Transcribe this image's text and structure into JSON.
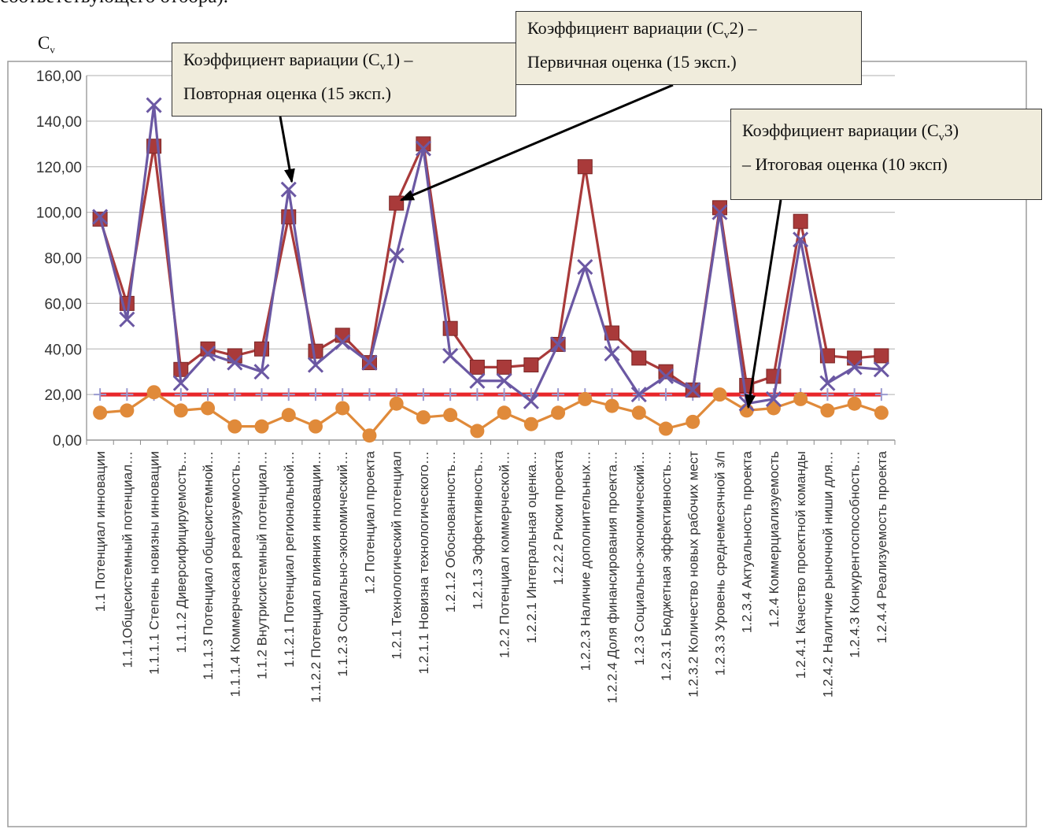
{
  "page": {
    "top_fragment": "соответствующего отбора)."
  },
  "colors": {
    "cv1": "#6b58a3",
    "cv2": "#a93a3a",
    "cv3": "#e08a3a",
    "threshold": "#e8262a",
    "threshold_marker": "#9a9ad0",
    "grid": "#bfbfbf",
    "callout_bg": "#f0ecdc"
  },
  "callouts": [
    {
      "line1_prefix": "Коэффициент вариации (C",
      "line1_sub": "v",
      "line1_suffix": "1) –",
      "line2": "Повторная оценка (15 эксп.)"
    },
    {
      "line1_prefix": "Коэффициент вариации (C",
      "line1_sub": "v",
      "line1_suffix": "2) –",
      "line2": "Первичная оценка (15 эксп.)"
    },
    {
      "line1_prefix": "Коэффициент вариации (C",
      "line1_sub": "v",
      "line1_suffix": "3)",
      "line2": "– Итоговая оценка (10 эксп)"
    }
  ],
  "chart_data": {
    "type": "line",
    "ylabel_main": "C",
    "ylabel_sub": "v",
    "ylim": [
      0,
      160
    ],
    "yticks": [
      "0,00",
      "20,00",
      "40,00",
      "60,00",
      "80,00",
      "100,00",
      "120,00",
      "140,00",
      "160,00"
    ],
    "grid": true,
    "categories": [
      "1.1  Потенциал инновации",
      "1.1.1Общесистемный потенциал…",
      "1.1.1.1 Степень новизны инновации",
      "1.1.1.2 Диверсифицируемость…",
      "1.1.1.3 Потенциал общесистемной…",
      "1.1.1.4 Коммерческая реализуемость…",
      "1.1.2 Внутрисистемный потенциал…",
      "1.1.2.1 Потенциал региональной…",
      "1.1.2.2 Потенциал влияния инновации…",
      "1.1.2.3 Социально-экономический…",
      "1.2 Потенциал проекта",
      "1.2.1 Технологический потенциал",
      "1.2.1.1 Новизна технологического…",
      "1.2.1.2 Обоснованность…",
      "1.2.1.3 Эффективность…",
      "1.2.2 Потенциал коммерческой…",
      "1.2.2.1 Интегральная оценка…",
      "1.2.2.2 Риски проекта",
      "1.2.2.3 Наличие дополнительных…",
      "1.2.2.4 Доля финансирования проекта…",
      "1.2.3 Социально-экономический…",
      "1.2.3.1 Бюджетная эффективность…",
      "1.2.3.2 Количество новых рабочих мест",
      "1.2.3.3 Уровень среднемесячной з/п",
      "1.2.3.4 Актуальность проекта",
      "1.2.4 Коммерциализуемость",
      "1.2.4.1 Качество проектной команды",
      "1.2.4.2 Налитчие рыночной ниши для…",
      "1.2.4.3 Конкурентоспособность…",
      "1.2.4.4 Реализуемость проекта"
    ],
    "series": [
      {
        "key": "cv1",
        "marker": "x",
        "values": [
          98,
          53,
          147,
          25,
          38,
          34,
          30,
          110,
          33,
          43,
          34,
          81,
          128,
          37,
          26,
          26,
          17,
          42,
          76,
          38,
          20,
          28,
          22,
          100,
          16,
          18,
          88,
          25,
          32,
          31
        ]
      },
      {
        "key": "cv2",
        "marker": "square",
        "values": [
          97,
          60,
          129,
          31,
          40,
          37,
          40,
          98,
          39,
          46,
          34,
          104,
          130,
          49,
          32,
          32,
          33,
          42,
          120,
          47,
          36,
          30,
          22,
          102,
          24,
          28,
          96,
          37,
          36,
          37
        ]
      },
      {
        "key": "cv3",
        "marker": "circle",
        "values": [
          12,
          13,
          21,
          13,
          14,
          6,
          6,
          11,
          6,
          14,
          2,
          16,
          10,
          11,
          4,
          12,
          7,
          12,
          18,
          15,
          12,
          5,
          8,
          20,
          13,
          14,
          18,
          13,
          16,
          12
        ]
      },
      {
        "key": "threshold",
        "marker": "plus",
        "values": [
          20,
          20,
          20,
          20,
          20,
          20,
          20,
          20,
          20,
          20,
          20,
          20,
          20,
          20,
          20,
          20,
          20,
          20,
          20,
          20,
          20,
          20,
          20,
          20,
          20,
          20,
          20,
          20,
          20,
          20
        ]
      }
    ]
  }
}
